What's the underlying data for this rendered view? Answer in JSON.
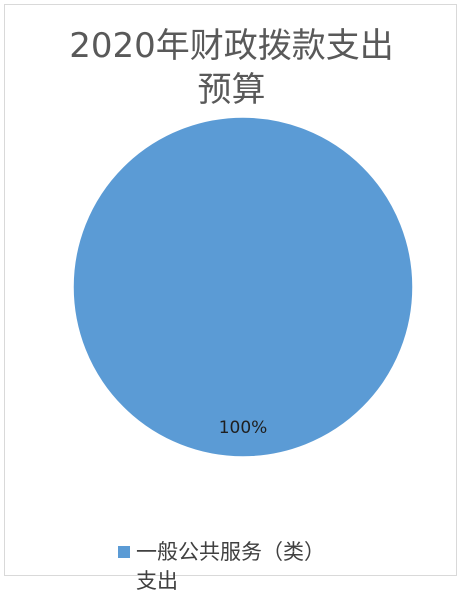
{
  "chart_data": {
    "type": "pie",
    "title_lines": [
      "2020年财政拨款支出",
      "预算"
    ],
    "categories": [
      "一般公共服务（类）支出"
    ],
    "values": [
      100
    ],
    "data_labels": [
      "100%"
    ],
    "colors": [
      "#5b9bd5"
    ],
    "legend": {
      "position": "bottom",
      "entries": [
        {
          "line1": "一般公共服务（类）",
          "line2": "支出"
        }
      ]
    }
  }
}
